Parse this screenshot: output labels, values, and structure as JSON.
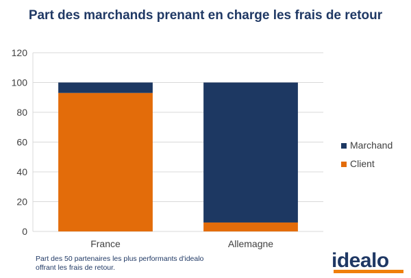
{
  "colors": {
    "marchand": "#1d3862",
    "client": "#e36c0a",
    "grid": "#d9d9d9",
    "text": "#404040",
    "title": "#1f3864",
    "logo_accent": "#f07f0a"
  },
  "footnote": {
    "line1": "Part des 50 partenaires les plus performants d'idealo",
    "line2": "offrant les frais de retour."
  },
  "logo": {
    "text": "idealo"
  },
  "chart_data": {
    "type": "bar",
    "stacked": true,
    "title": "Part des marchands prenant en charge les frais de retour",
    "categories": [
      "France",
      "Allemagne"
    ],
    "series": [
      {
        "name": "Marchand",
        "values": [
          7,
          94
        ]
      },
      {
        "name": "Client",
        "values": [
          93,
          6
        ]
      }
    ],
    "ylim": [
      0,
      120
    ],
    "yticks": [
      0,
      20,
      40,
      60,
      80,
      100,
      120
    ],
    "grid": true,
    "legend": "right"
  }
}
